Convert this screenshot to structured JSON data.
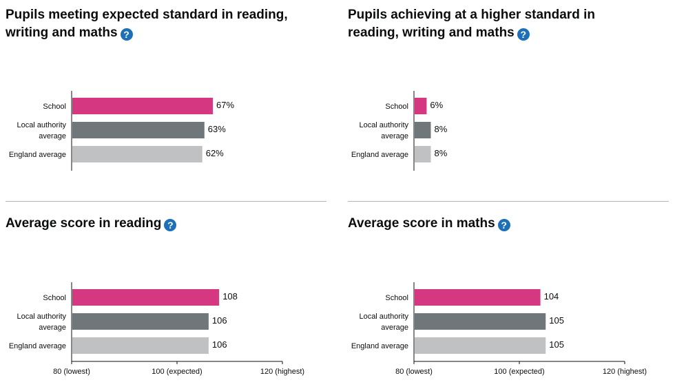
{
  "colors": {
    "school": "#d53880",
    "local_authority": "#6f777b",
    "england": "#bfc1c3",
    "help_icon": "#1d70b8"
  },
  "help_icon_glyph": "?",
  "chart_data": [
    {
      "type": "bar",
      "orientation": "horizontal",
      "title": "Pupils meeting expected standard in reading, writing and maths",
      "categories": [
        "School",
        "Local authority average",
        "England average"
      ],
      "category_lines": [
        [
          "School"
        ],
        [
          "Local authority",
          "average"
        ],
        [
          "England average"
        ]
      ],
      "values": [
        67,
        63,
        62
      ],
      "value_labels": [
        "67%",
        "63%",
        "62%"
      ],
      "xlim": [
        0,
        100
      ],
      "x_tick_labels": []
    },
    {
      "type": "bar",
      "orientation": "horizontal",
      "title": "Pupils achieving at a higher standard in reading, writing and maths",
      "categories": [
        "School",
        "Local authority average",
        "England average"
      ],
      "category_lines": [
        [
          "School"
        ],
        [
          "Local authority",
          "average"
        ],
        [
          "England average"
        ]
      ],
      "values": [
        6,
        8,
        8
      ],
      "value_labels": [
        "6%",
        "8%",
        "8%"
      ],
      "xlim": [
        0,
        100
      ],
      "x_tick_labels": []
    },
    {
      "type": "bar",
      "orientation": "horizontal",
      "title": "Average score in reading",
      "categories": [
        "School",
        "Local authority average",
        "England average"
      ],
      "category_lines": [
        [
          "School"
        ],
        [
          "Local authority",
          "average"
        ],
        [
          "England average"
        ]
      ],
      "values": [
        108,
        106,
        106
      ],
      "value_labels": [
        "108",
        "106",
        "106"
      ],
      "xlim": [
        80,
        120
      ],
      "x_ticks": [
        80,
        100,
        120
      ],
      "x_tick_labels": [
        "80 (lowest)",
        "100 (expected)",
        "120 (highest)"
      ]
    },
    {
      "type": "bar",
      "orientation": "horizontal",
      "title": "Average score in maths",
      "categories": [
        "School",
        "Local authority average",
        "England average"
      ],
      "category_lines": [
        [
          "School"
        ],
        [
          "Local authority",
          "average"
        ],
        [
          "England average"
        ]
      ],
      "values": [
        104,
        105,
        105
      ],
      "value_labels": [
        "104",
        "105",
        "105"
      ],
      "xlim": [
        80,
        120
      ],
      "x_ticks": [
        80,
        100,
        120
      ],
      "x_tick_labels": [
        "80 (lowest)",
        "100 (expected)",
        "120 (highest)"
      ]
    }
  ]
}
